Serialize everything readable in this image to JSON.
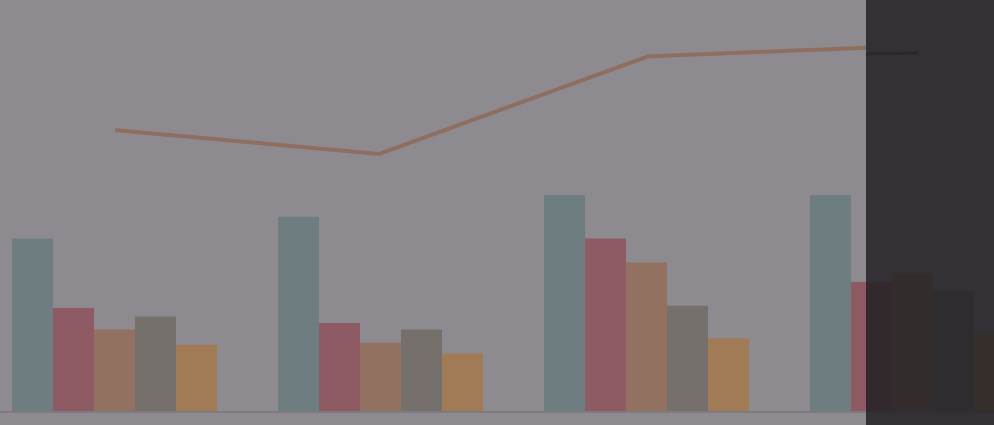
{
  "chart_data": {
    "type": "bar",
    "categories": [
      "",
      "",
      "",
      ""
    ],
    "series": [
      {
        "values": [
          80,
          90,
          100,
          100
        ],
        "color": "#6e7d7f"
      },
      {
        "values": [
          48,
          41,
          80,
          60
        ],
        "color": "#8e5a63"
      },
      {
        "values": [
          38,
          32,
          69,
          64
        ],
        "color": "#927161"
      },
      {
        "values": [
          44,
          38,
          49,
          56
        ],
        "color": "#76706c"
      },
      {
        "values": [
          31,
          27,
          34,
          36
        ],
        "color": "#a17b56"
      }
    ],
    "line": {
      "values": [
        130,
        119,
        164,
        168
      ],
      "color": "#8e6e5f"
    },
    "line_end_label": "",
    "ylim": [
      0,
      190
    ],
    "grid": false,
    "legend": "none",
    "overlay_color": "#1f1d21"
  }
}
